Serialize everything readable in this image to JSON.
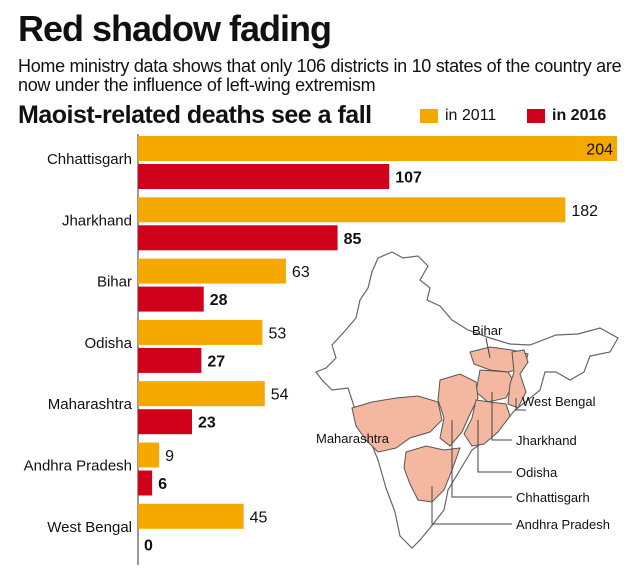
{
  "title": "Red shadow fading",
  "subtitle": "Home ministry data shows that only 106 districts in 10 states of the country are now under the influence of left-wing extremism",
  "chart_data": {
    "type": "bar",
    "orientation": "horizontal",
    "title": "Maoist-related deaths see a fall",
    "categories": [
      "Chhattisgarh",
      "Jharkhand",
      "Bihar",
      "Odisha",
      "Maharashtra",
      "Andhra Pradesh",
      "West Bengal"
    ],
    "series": [
      {
        "name": "in 2011",
        "color": "#f5a800",
        "values": [
          204,
          182,
          63,
          53,
          54,
          9,
          45
        ]
      },
      {
        "name": "in 2016",
        "color": "#d0021b",
        "values": [
          107,
          85,
          28,
          27,
          23,
          6,
          0
        ]
      }
    ],
    "xlim": [
      0,
      204
    ],
    "legend": "top-right"
  },
  "map": {
    "labels": [
      "Bihar",
      "West Bengal",
      "Maharashtra",
      "Jharkhand",
      "Odisha",
      "Chhattisgarh",
      "Andhra Pradesh"
    ],
    "fill_color": "#f4b8a0",
    "outline_color": "#555555"
  }
}
